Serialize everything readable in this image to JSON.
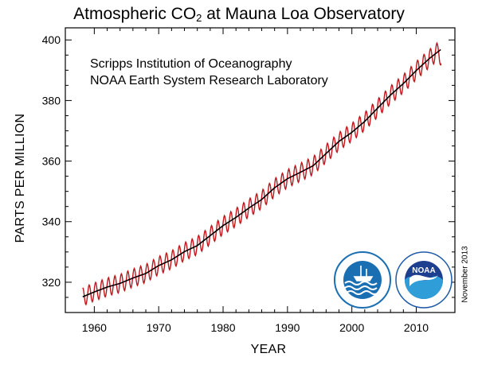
{
  "chart_title": {
    "main": "Atmospheric CO",
    "sub": "2",
    "rest": " at Mauna Loa Observatory"
  },
  "credit": {
    "line1": "Scripps Institution of Oceanography",
    "line2": "NOAA Earth System Research Laboratory"
  },
  "datestamp": "November 2013",
  "logos": {
    "scripps": {
      "name": "scripps-logo",
      "color": "#1a6fb3"
    },
    "noaa": {
      "name": "noaa-logo",
      "text": "NOAA",
      "color": "#1e5aa8"
    }
  },
  "chart_data": {
    "type": "line",
    "title": "Atmospheric CO2 at Mauna Loa Observatory",
    "xlabel": "YEAR",
    "ylabel": "PARTS PER MILLION",
    "xlim": [
      1955.5,
      2016
    ],
    "ylim": [
      310,
      404
    ],
    "xticks": [
      1960,
      1970,
      1980,
      1990,
      2000,
      2010
    ],
    "yticks": [
      320,
      340,
      360,
      380,
      400
    ],
    "grid": false,
    "series": [
      {
        "kind": "monthly",
        "color": "#c0161b",
        "seasonal_amplitude": 3,
        "x": [
          1958.2,
          1960,
          1962,
          1964,
          1966,
          1968,
          1970,
          1972,
          1974,
          1976,
          1978,
          1980,
          1982,
          1984,
          1986,
          1988,
          1990,
          1992,
          1994,
          1996,
          1998,
          2000,
          2002,
          2004,
          2006,
          2008,
          2010,
          2012,
          2013.5,
          2013.9
        ],
        "y": [
          315.2,
          316.8,
          318.4,
          319.6,
          321.4,
          322.9,
          325.5,
          327.4,
          330.1,
          332.1,
          335.4,
          338.7,
          341.4,
          344.5,
          347.3,
          351.2,
          354.2,
          356.3,
          358.5,
          362.5,
          366.5,
          369.5,
          373.1,
          377.5,
          381.8,
          385.6,
          389.9,
          393.8,
          396.5,
          393.5
        ]
      },
      {
        "kind": "trend",
        "color": "#000000",
        "x": [
          1958.2,
          1960,
          1962,
          1964,
          1966,
          1968,
          1970,
          1972,
          1974,
          1976,
          1978,
          1980,
          1982,
          1984,
          1986,
          1988,
          1990,
          1992,
          1994,
          1996,
          1998,
          2000,
          2002,
          2004,
          2006,
          2008,
          2010,
          2012,
          2013.8
        ],
        "y": [
          315.2,
          316.8,
          318.4,
          319.6,
          321.4,
          322.9,
          325.5,
          327.4,
          330.1,
          332.1,
          335.4,
          338.7,
          341.4,
          344.5,
          347.3,
          351.2,
          354.2,
          356.3,
          358.5,
          362.5,
          366.5,
          369.5,
          373.1,
          377.5,
          381.8,
          385.6,
          389.9,
          393.8,
          396.8
        ]
      }
    ]
  }
}
